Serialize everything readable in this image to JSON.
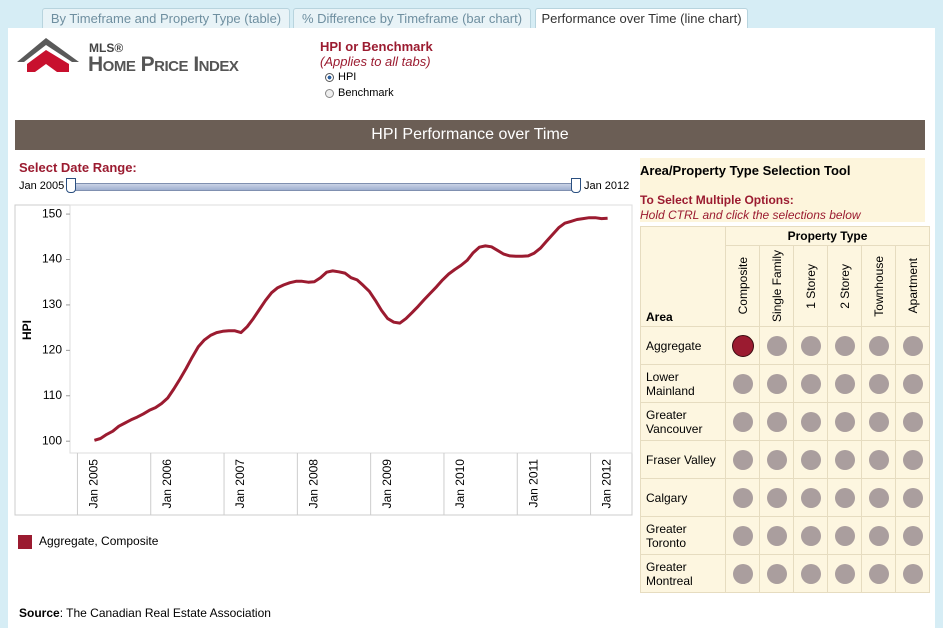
{
  "tabs": [
    {
      "label": "By Timeframe and Property Type (table)",
      "active": false
    },
    {
      "label": "% Difference by Timeframe (bar chart)",
      "active": false
    },
    {
      "label": "Performance over Time (line chart)",
      "active": true
    }
  ],
  "logo": {
    "brand": "MLS®",
    "name": "Home Price Index"
  },
  "index_choice": {
    "title": "HPI or Benchmark",
    "note": "(Applies to all tabs)",
    "options": [
      {
        "label": "HPI",
        "checked": true
      },
      {
        "label": "Benchmark",
        "checked": false
      }
    ]
  },
  "panel_title": "HPI Performance over Time",
  "date_range": {
    "label": "Select Date Range:",
    "start": "Jan 2005",
    "end": "Jan 2012"
  },
  "chart_data": {
    "type": "line",
    "ylabel": "HPI",
    "x": [
      "2005-01",
      "2005-02",
      "2005-03",
      "2005-04",
      "2005-05",
      "2005-06",
      "2005-07",
      "2005-08",
      "2005-09",
      "2005-10",
      "2005-11",
      "2005-12",
      "2006-01",
      "2006-02",
      "2006-03",
      "2006-04",
      "2006-05",
      "2006-06",
      "2006-07",
      "2006-08",
      "2006-09",
      "2006-10",
      "2006-11",
      "2006-12",
      "2007-01",
      "2007-02",
      "2007-03",
      "2007-04",
      "2007-05",
      "2007-06",
      "2007-07",
      "2007-08",
      "2007-09",
      "2007-10",
      "2007-11",
      "2007-12",
      "2008-01",
      "2008-02",
      "2008-03",
      "2008-04",
      "2008-05",
      "2008-06",
      "2008-07",
      "2008-08",
      "2008-09",
      "2008-10",
      "2008-11",
      "2008-12",
      "2009-01",
      "2009-02",
      "2009-03",
      "2009-04",
      "2009-05",
      "2009-06",
      "2009-07",
      "2009-08",
      "2009-09",
      "2009-10",
      "2009-11",
      "2009-12",
      "2010-01",
      "2010-02",
      "2010-03",
      "2010-04",
      "2010-05",
      "2010-06",
      "2010-07",
      "2010-08",
      "2010-09",
      "2010-10",
      "2010-11",
      "2010-12",
      "2011-01",
      "2011-02",
      "2011-03",
      "2011-04",
      "2011-05",
      "2011-06",
      "2011-07",
      "2011-08",
      "2011-09",
      "2011-10",
      "2011-11",
      "2011-12",
      "2012-01"
    ],
    "series": [
      {
        "name": "Aggregate, Composite",
        "color": "#9b1b30",
        "values": [
          100.2,
          100.6,
          101.5,
          102.2,
          103.3,
          104.0,
          104.7,
          105.3,
          106.0,
          106.8,
          107.4,
          108.3,
          109.5,
          111.5,
          113.7,
          116.0,
          118.5,
          120.8,
          122.3,
          123.3,
          123.9,
          124.2,
          124.3,
          124.3,
          123.9,
          125.2,
          127.0,
          129.0,
          131.0,
          132.7,
          133.8,
          134.4,
          134.9,
          135.2,
          135.2,
          135.0,
          135.1,
          136.0,
          137.2,
          137.5,
          137.3,
          137.0,
          136.0,
          135.5,
          134.3,
          133.0,
          131.0,
          128.8,
          127.0,
          126.2,
          126.0,
          127.0,
          128.3,
          129.7,
          131.2,
          132.6,
          134.0,
          135.5,
          136.8,
          137.8,
          138.7,
          139.8,
          141.5,
          142.7,
          143.0,
          142.8,
          142.0,
          141.2,
          140.8,
          140.7,
          140.7,
          140.8,
          141.4,
          142.5,
          144.0,
          145.5,
          147.0,
          148.0,
          148.4,
          148.8,
          149.0,
          149.2,
          149.2,
          149.0,
          149.1
        ]
      }
    ],
    "xlim": [
      "2004-09",
      "2012-05"
    ],
    "xticks": [
      {
        "value": "2005-01",
        "label": "Jan 2005"
      },
      {
        "value": "2006-01",
        "label": "Jan 2006"
      },
      {
        "value": "2007-01",
        "label": "Jan 2007"
      },
      {
        "value": "2008-01",
        "label": "Jan 2008"
      },
      {
        "value": "2009-01",
        "label": "Jan 2009"
      },
      {
        "value": "2010-01",
        "label": "Jan 2010"
      },
      {
        "value": "2011-01",
        "label": "Jan 2011"
      },
      {
        "value": "2012-01",
        "label": "Jan 2012"
      }
    ],
    "ylim": [
      97.4,
      152
    ],
    "yticks": [
      100,
      110,
      120,
      130,
      140,
      150
    ],
    "grid": false
  },
  "selection_tool": {
    "title": "Area/Property Type Selection Tool",
    "instruction": "To Select Multiple Options:",
    "hint": "Hold CTRL and click the selections below",
    "area_header": "Area",
    "type_header": "Property Type",
    "property_types": [
      "Composite",
      "Single Family",
      "1 Storey",
      "2 Storey",
      "Townhouse",
      "Apartment"
    ],
    "areas": [
      "Aggregate",
      "Lower Mainland",
      "Greater Vancouver",
      "Fraser Valley",
      "Calgary",
      "Greater Toronto",
      "Greater Montreal"
    ],
    "selected": {
      "area": "Aggregate",
      "property_type": "Composite"
    }
  },
  "source": {
    "label": "Source",
    "text": ": The Canadian Real Estate Association"
  }
}
